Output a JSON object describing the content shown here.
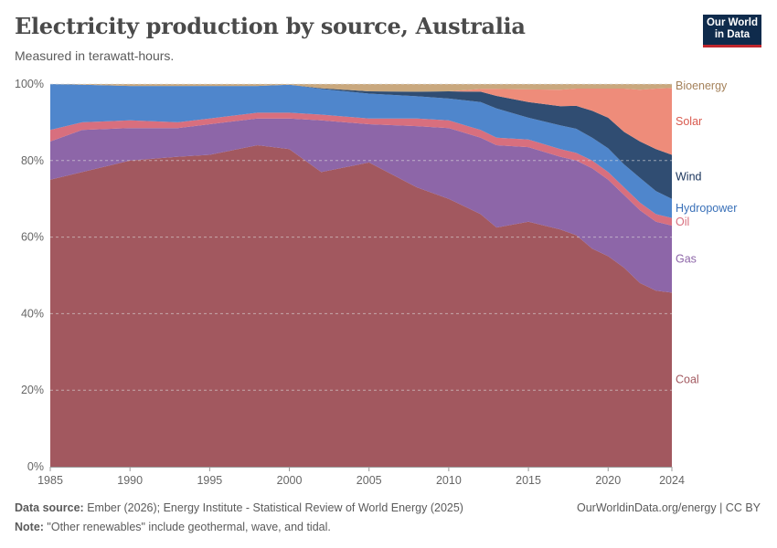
{
  "header": {
    "title": "Electricity production by source, Australia",
    "subtitle": "Measured in terawatt-hours.",
    "logo_line1": "Our World",
    "logo_line2": "in Data"
  },
  "footer": {
    "source_label": "Data source:",
    "source_text": " Ember (2026); Energy Institute - Statistical Review of World Energy (2025)",
    "note_label": "Note:",
    "note_text": " \"Other renewables\" include geothermal, wave, and tidal.",
    "credit": "OurWorldinData.org/energy | CC BY"
  },
  "chart_data": {
    "type": "area",
    "stacked": true,
    "normalized": "percent",
    "title": "Electricity production by source, Australia",
    "subtitle": "Measured in terawatt-hours.",
    "x": [
      1985,
      1987,
      1990,
      1993,
      1995,
      1998,
      2000,
      2002,
      2005,
      2008,
      2010,
      2012,
      2013,
      2015,
      2017,
      2018,
      2019,
      2020,
      2021,
      2022,
      2023,
      2024
    ],
    "xticks": [
      "1985",
      "1990",
      "1995",
      "2000",
      "2005",
      "2010",
      "2015",
      "2020",
      "2024"
    ],
    "xtick_values": [
      1985,
      1990,
      1995,
      2000,
      2005,
      2010,
      2015,
      2020,
      2024
    ],
    "yticks": [
      "0%",
      "20%",
      "40%",
      "60%",
      "80%",
      "100%"
    ],
    "ytick_values": [
      0,
      20,
      40,
      60,
      80,
      100
    ],
    "ylim": [
      0,
      100
    ],
    "series": [
      {
        "name": "Coal",
        "color": "#a2585f",
        "label_color": "#a2585f",
        "values": [
          75,
          77,
          80,
          81,
          81.5,
          84,
          83,
          77,
          79.5,
          73,
          70,
          66,
          62.5,
          64,
          62,
          60.5,
          57,
          55,
          52,
          48,
          46,
          45.5
        ]
      },
      {
        "name": "Gas",
        "color": "#8d66a8",
        "label_color": "#8d66a8",
        "values": [
          10,
          11,
          8.5,
          7.5,
          8,
          7,
          8,
          13.5,
          10,
          16,
          18.5,
          20,
          21.5,
          19.5,
          19,
          19.5,
          21,
          20,
          19,
          19,
          18,
          17.5
        ]
      },
      {
        "name": "Oil",
        "color": "#d86f7e",
        "label_color": "#d86f7e",
        "values": [
          3,
          2,
          2,
          1.5,
          1.5,
          1.5,
          1.5,
          1.5,
          1.5,
          2,
          2,
          2,
          2,
          2,
          2,
          2,
          2,
          2,
          2,
          2,
          2,
          2
        ]
      },
      {
        "name": "Hydropower",
        "color": "#4f86cc",
        "label_color": "#3970b8",
        "values": [
          12,
          9.8,
          9,
          9.5,
          8.5,
          7,
          7.3,
          6.7,
          6.5,
          5.8,
          5.7,
          7.3,
          7.6,
          5.7,
          6.2,
          6.3,
          6,
          6.2,
          6,
          6.5,
          6,
          5
        ]
      },
      {
        "name": "Wind",
        "color": "#304d72",
        "label_color": "#17325a",
        "values": [
          0,
          0,
          0,
          0,
          0,
          0,
          0,
          0.2,
          0.6,
          1.2,
          1.9,
          2.7,
          3.3,
          4.1,
          5,
          6,
          7,
          8,
          8.5,
          9.5,
          11,
          11.5
        ]
      },
      {
        "name": "Solar",
        "color": "#ee8c7a",
        "label_color": "#d95a4e",
        "values": [
          0,
          0,
          0,
          0,
          0,
          0,
          0,
          0,
          0,
          0,
          0,
          0.7,
          1.8,
          3.3,
          4.3,
          4.5,
          5.8,
          7.6,
          11.3,
          13.5,
          15.8,
          17.5
        ]
      },
      {
        "name": "Bioenergy",
        "color": "#c9a87e",
        "label_color": "#a5825b",
        "values": [
          0,
          0.2,
          0.5,
          0.5,
          0.5,
          0.5,
          0.2,
          1.1,
          1.9,
          2,
          1.9,
          1.3,
          1.3,
          1.4,
          1.5,
          1.2,
          1.2,
          1.2,
          1.2,
          1.5,
          1.2,
          1
        ]
      }
    ]
  }
}
